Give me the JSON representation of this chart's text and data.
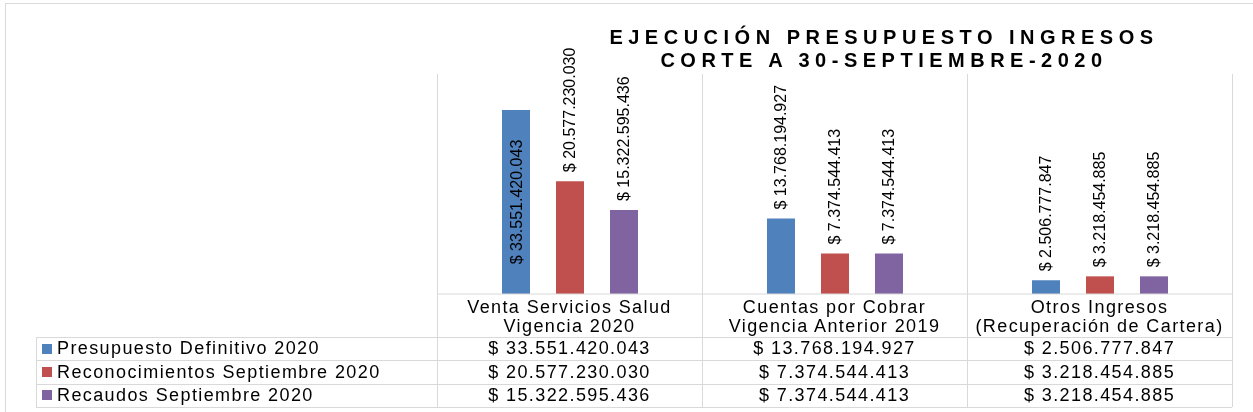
{
  "chart_data": {
    "type": "bar",
    "title": "EJECUCIÓN PRESUPUESTO INGRESOS\nCORTE A 30-SEPTIEMBRE-2020",
    "categories": [
      "Venta Servicios Salud\nVigencia 2020",
      "Cuentas por Cobrar\nVigencia Anterior 2019",
      "Otros Ingresos\n(Recuperación de Cartera)"
    ],
    "series": [
      {
        "name": "Presupuesto Definitivo 2020",
        "color": "#4f81bd",
        "values": [
          33551420043,
          13768194927,
          2506777847
        ],
        "value_labels": [
          "$ 33.551.420.043",
          "$ 13.768.194.927",
          "$ 2.506.777.847"
        ]
      },
      {
        "name": "Reconocimientos Septiembre 2020",
        "color": "#c0504d",
        "values": [
          20577230030,
          7374544413,
          3218454885
        ],
        "value_labels": [
          "$ 20.577.230.030",
          "$ 7.374.544.413",
          "$ 3.218.454.885"
        ]
      },
      {
        "name": "Recaudos Septiembre 2020",
        "color": "#8064a2",
        "values": [
          15322595436,
          7374544413,
          3218454885
        ],
        "value_labels": [
          "$ 15.322.595.436",
          "$ 7.374.544.413",
          "$ 3.218.454.885"
        ]
      }
    ],
    "legend": "bottom left"
  }
}
